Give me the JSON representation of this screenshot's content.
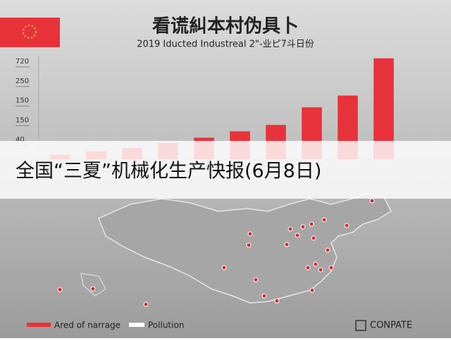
{
  "chart_data": {
    "type": "bar",
    "title": "看谎糾本村伪具卜",
    "subtitle": "2019 Iducted Industreal 2\"-业ピ7斗日份",
    "categories": [
      null,
      null,
      null,
      null,
      null,
      null,
      null,
      null,
      null,
      null
    ],
    "series": [
      {
        "name": "Ared of narrage",
        "color": "#e8323a",
        "values": [
          9,
          16,
          23,
          33,
          44,
          57,
          70,
          106,
          130,
          206
        ]
      }
    ],
    "ylim": [
      0,
      210
    ],
    "yticks": [
      40,
      {
        "value": 80,
        "label": "150"
      },
      {
        "value": 120,
        "label": "150"
      },
      {
        "value": 160,
        "label": "250"
      },
      {
        "value": 200,
        "label": "720"
      }
    ],
    "map_legend": {
      "name": "Pollution",
      "color": "#ffffff"
    }
  },
  "banner": "全国“三夏”机械化生产快报(6月8日)",
  "brand": "CONPATE"
}
